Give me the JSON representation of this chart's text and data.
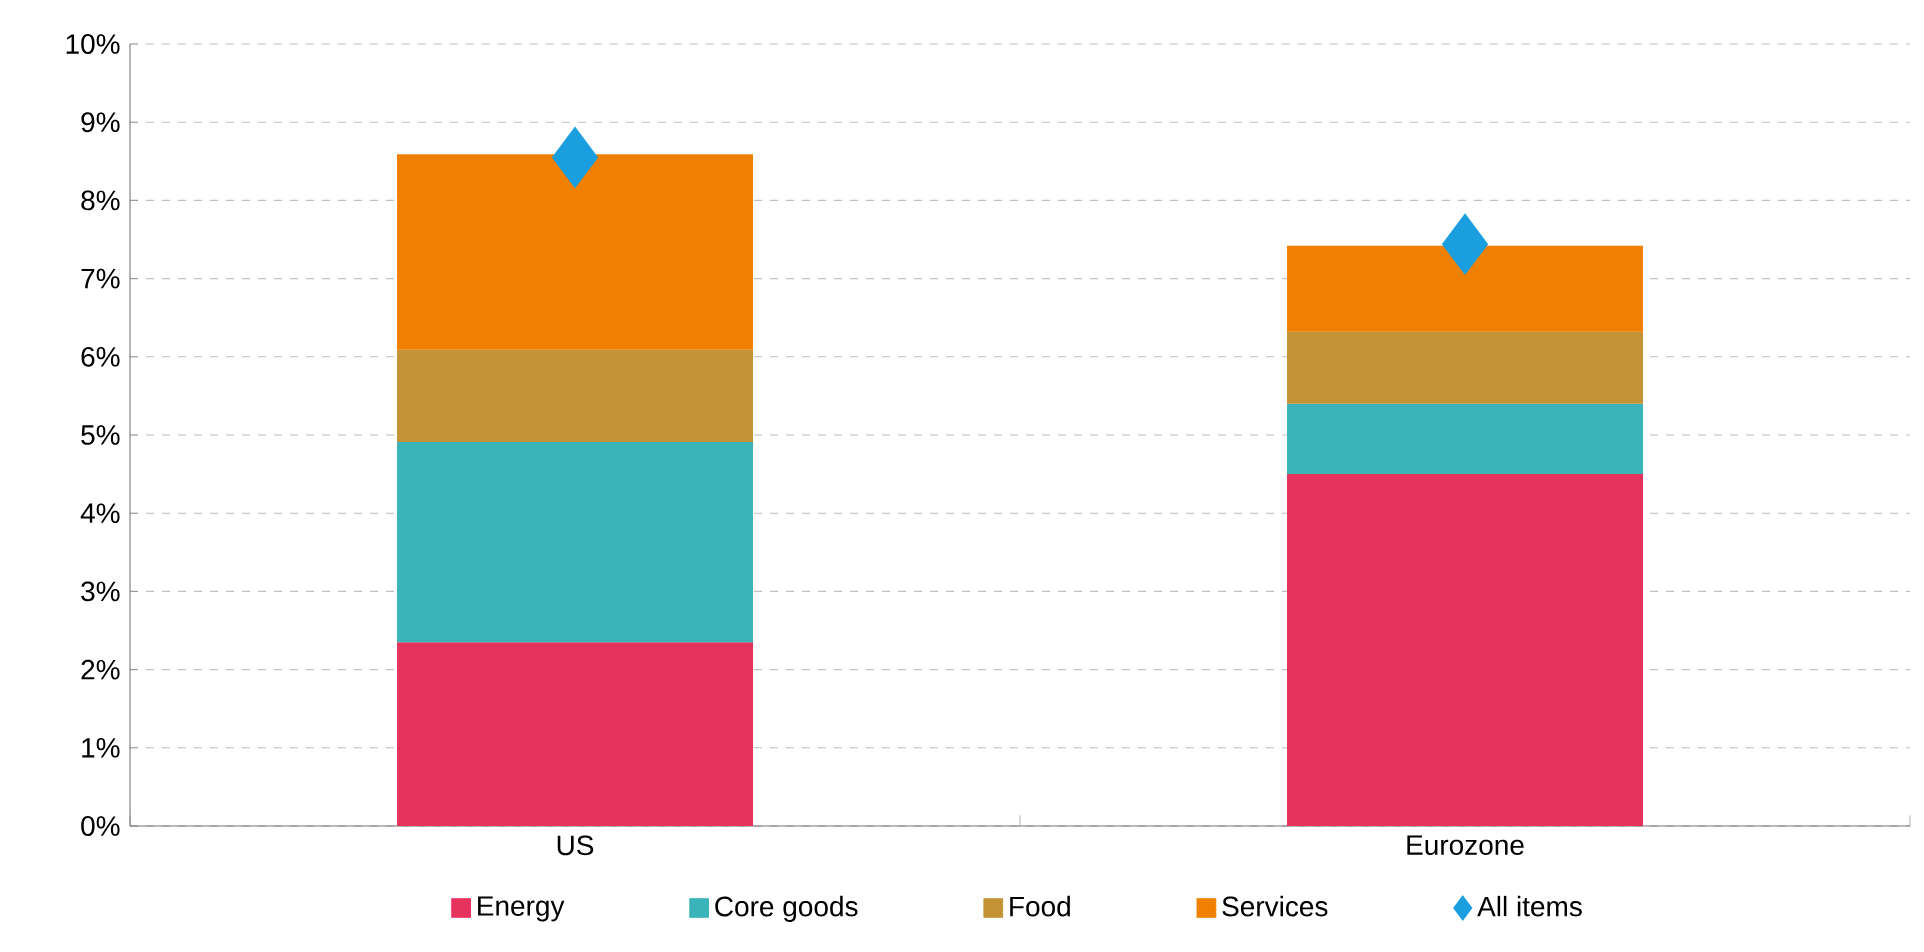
{
  "chart_data": {
    "type": "bar",
    "stacked": true,
    "categories": [
      "US",
      "Eurozone"
    ],
    "series": [
      {
        "name": "Energy",
        "color": "#e5335e",
        "values": [
          2.35,
          4.5
        ]
      },
      {
        "name": "Core goods",
        "color": "#3ab4b8",
        "values": [
          2.56,
          0.9
        ]
      },
      {
        "name": "Food",
        "color": "#c49335",
        "values": [
          1.18,
          0.92
        ]
      },
      {
        "name": "Services",
        "color": "#f08000",
        "values": [
          2.5,
          1.1
        ]
      },
      {
        "name": "All items",
        "type": "scatter",
        "color": "#1a9ee0",
        "marker": "diamond",
        "x": [
          "US",
          "Eurozone"
        ],
        "values": [
          8.55,
          7.44
        ]
      }
    ],
    "ylim": [
      0,
      10
    ],
    "yticks": [
      {
        "value": 0,
        "label": "0%"
      },
      {
        "value": 1,
        "label": "1%"
      },
      {
        "value": 2,
        "label": "2%"
      },
      {
        "value": 3,
        "label": "3%"
      },
      {
        "value": 4,
        "label": "4%"
      },
      {
        "value": 5,
        "label": "5%"
      },
      {
        "value": 6,
        "label": "6%"
      },
      {
        "value": 7,
        "label": "7%"
      },
      {
        "value": 8,
        "label": "8%"
      },
      {
        "value": 9,
        "label": "9%"
      },
      {
        "value": 10,
        "label": "10%"
      }
    ],
    "grid": "y",
    "legend": "bottom"
  }
}
